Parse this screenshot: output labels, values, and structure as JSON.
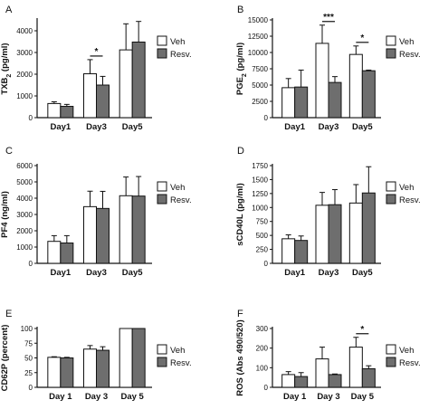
{
  "colors": {
    "veh_fill": "#ffffff",
    "resv_fill": "#6e6e6e",
    "stroke": "#111111"
  },
  "chart_data": [
    {
      "type": "bar",
      "panel": "A",
      "ylabel": "TXB",
      "ylabel_sub": "2",
      "ylabel_unit": "(pg/ml)",
      "categories": [
        "Day1",
        "Day3",
        "Day5"
      ],
      "ylim": [
        0,
        4500
      ],
      "yticks": [
        0,
        1000,
        2000,
        3000,
        4000
      ],
      "series": [
        {
          "name": "Veh",
          "values": [
            650,
            2020,
            3120
          ],
          "errors": [
            80,
            650,
            1200
          ]
        },
        {
          "name": "Resv.",
          "values": [
            520,
            1500,
            3480
          ],
          "errors": [
            90,
            400,
            950
          ]
        }
      ],
      "significance": [
        {
          "category": "Day3",
          "label": "*"
        }
      ],
      "legend": "right"
    },
    {
      "type": "bar",
      "panel": "B",
      "ylabel": "PGE",
      "ylabel_sub": "2",
      "ylabel_unit": "(pg/ml)",
      "categories": [
        "Day1",
        "Day3",
        "Day5"
      ],
      "ylim": [
        0,
        15000
      ],
      "yticks": [
        0,
        2500,
        5000,
        7500,
        10000,
        12500,
        15000
      ],
      "series": [
        {
          "name": "Veh",
          "values": [
            4600,
            11400,
            9700
          ],
          "errors": [
            1400,
            2800,
            1300
          ]
        },
        {
          "name": "Resv.",
          "values": [
            4700,
            5400,
            7200
          ],
          "errors": [
            2600,
            900,
            100
          ]
        }
      ],
      "significance": [
        {
          "category": "Day3",
          "label": "***"
        },
        {
          "category": "Day5",
          "label": "*"
        }
      ],
      "legend": "right"
    },
    {
      "type": "bar",
      "panel": "C",
      "ylabel": "PF4",
      "ylabel_sub": "",
      "ylabel_unit": "(ng/ml)",
      "categories": [
        "Day1",
        "Day3",
        "Day5"
      ],
      "ylim": [
        0,
        6000
      ],
      "yticks": [
        0,
        1000,
        2000,
        3000,
        4000,
        5000,
        6000
      ],
      "series": [
        {
          "name": "Veh",
          "values": [
            1350,
            3480,
            4150
          ],
          "errors": [
            350,
            950,
            1150
          ]
        },
        {
          "name": "Resv.",
          "values": [
            1250,
            3370,
            4130
          ],
          "errors": [
            450,
            1050,
            1200
          ]
        }
      ],
      "significance": [],
      "legend": "right"
    },
    {
      "type": "bar",
      "panel": "D",
      "ylabel": "sCD40L",
      "ylabel_sub": "",
      "ylabel_unit": "(pg/ml)",
      "categories": [
        "Day1",
        "Day3",
        "Day5"
      ],
      "ylim": [
        0,
        1750
      ],
      "yticks": [
        0,
        250,
        500,
        750,
        1000,
        1250,
        1500,
        1750
      ],
      "series": [
        {
          "name": "Veh",
          "values": [
            440,
            1040,
            1080
          ],
          "errors": [
            70,
            230,
            330
          ]
        },
        {
          "name": "Resv.",
          "values": [
            410,
            1050,
            1260
          ],
          "errors": [
            80,
            270,
            470
          ]
        }
      ],
      "significance": [],
      "legend": "right"
    },
    {
      "type": "bar",
      "panel": "E",
      "ylabel": "CD62P",
      "ylabel_sub": "",
      "ylabel_unit": "(percent)",
      "categories": [
        "Day 1",
        "Day 3",
        "Day 5"
      ],
      "ylim": [
        0,
        100
      ],
      "yticks": [
        0,
        25,
        50,
        75,
        100
      ],
      "series": [
        {
          "name": "Veh",
          "values": [
            51,
            65,
            100
          ],
          "errors": [
            1,
            6,
            0
          ]
        },
        {
          "name": "Resv.",
          "values": [
            50,
            63,
            100
          ],
          "errors": [
            1,
            6,
            0
          ]
        }
      ],
      "significance": [],
      "legend": "right"
    },
    {
      "type": "bar",
      "panel": "F",
      "ylabel": "ROS",
      "ylabel_sub": "",
      "ylabel_unit": "(Abs 490/520)",
      "categories": [
        "Day 1",
        "Day 3",
        "Day 5"
      ],
      "ylim": [
        0,
        300
      ],
      "yticks": [
        0,
        100,
        200,
        300
      ],
      "series": [
        {
          "name": "Veh",
          "values": [
            65,
            145,
            205
          ],
          "errors": [
            15,
            60,
            50
          ]
        },
        {
          "name": "Resv.",
          "values": [
            55,
            65,
            95
          ],
          "errors": [
            20,
            3,
            15
          ]
        }
      ],
      "significance": [
        {
          "category": "Day 5",
          "label": "*"
        }
      ],
      "legend": "right"
    }
  ]
}
